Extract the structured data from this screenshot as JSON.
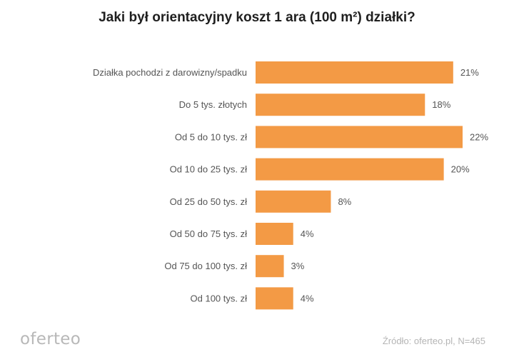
{
  "chart_data": {
    "type": "bar",
    "orientation": "horizontal",
    "title": "Jaki był orientacyjny koszt 1 ara (100 m²) działki?",
    "categories": [
      "Działka pochodzi z darowizny/spadku",
      "Do 5 tys. złotych",
      "Od 5 do 10 tys. zł",
      "Od 10 do 25 tys. zł",
      "Od 25 do 50 tys. zł",
      "Od 50 do 75 tys. zł",
      "Od 75 do 100 tys. zł",
      "Od 100 tys. zł"
    ],
    "values": [
      21,
      18,
      22,
      20,
      8,
      4,
      3,
      4
    ],
    "value_labels": [
      "21%",
      "18%",
      "22%",
      "20%",
      "8%",
      "4%",
      "3%",
      "4%"
    ],
    "unit": "%",
    "bar_color": "#F39A45",
    "xlim": [
      0,
      22
    ],
    "grid": false,
    "legend": "none"
  },
  "footer": {
    "logo": "oferteo",
    "source": "Źródło: oferteo.pl, N=465"
  }
}
